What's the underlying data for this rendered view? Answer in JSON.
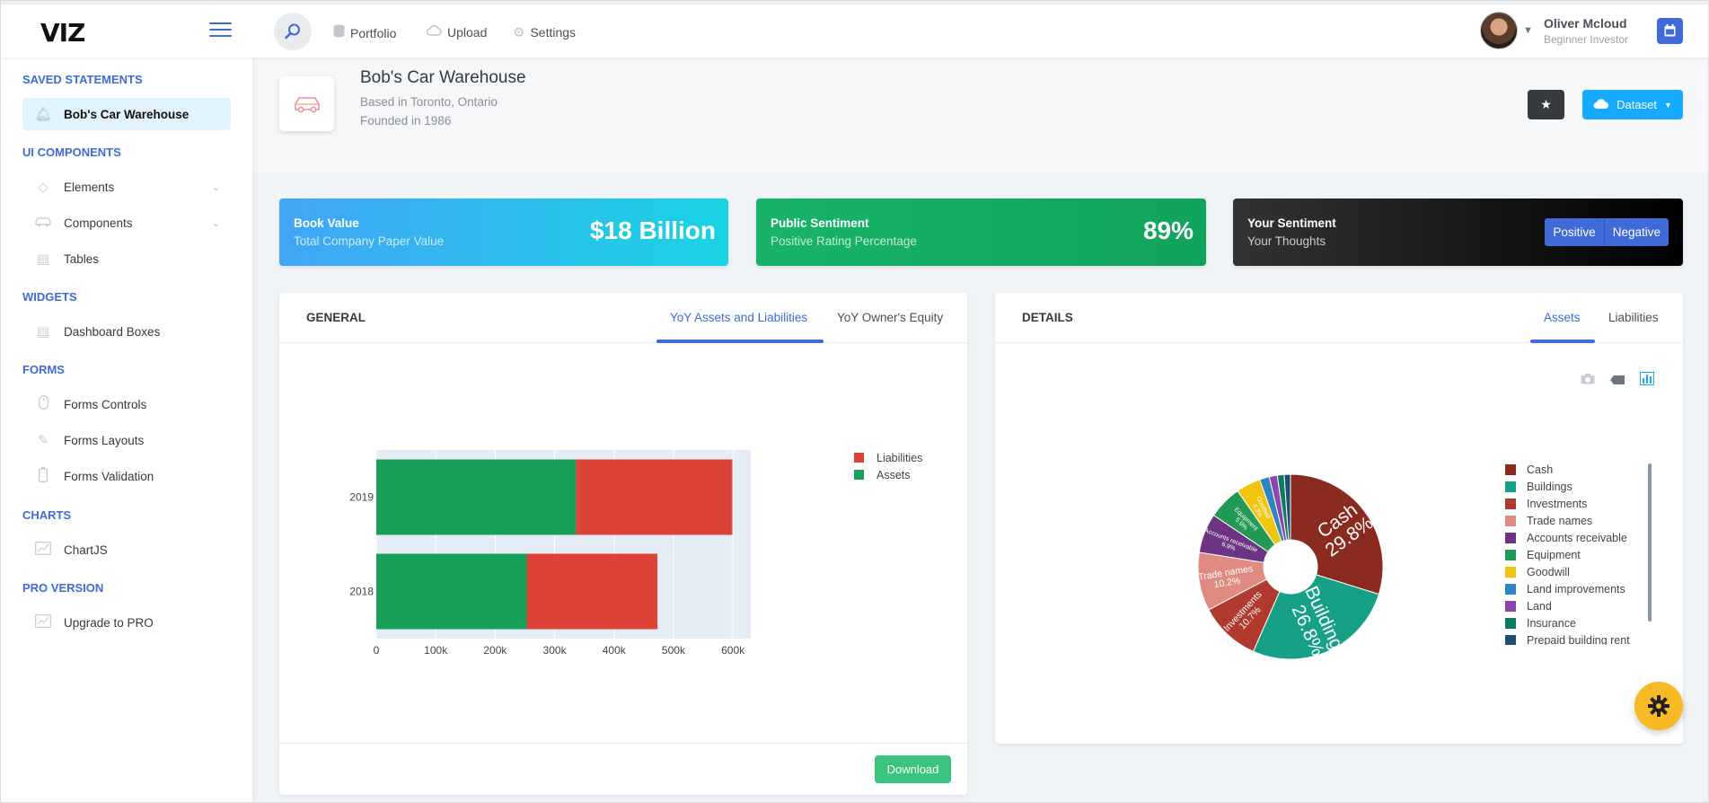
{
  "app": {
    "logo": "VIZ"
  },
  "topnav": [
    {
      "label": "Portfolio",
      "icon": "database-icon"
    },
    {
      "label": "Upload",
      "icon": "cloud-upload-icon"
    },
    {
      "label": "Settings",
      "icon": "gear-icon"
    }
  ],
  "user": {
    "name": "Oliver Mcloud",
    "role": "Beginner Investor"
  },
  "sidebar": {
    "sections": [
      {
        "label": "SAVED STATEMENTS",
        "items": [
          {
            "label": "Bob's Car Warehouse",
            "icon": "bell-icon",
            "active": true
          }
        ]
      },
      {
        "label": "UI COMPONENTS",
        "items": [
          {
            "label": "Elements",
            "icon": "diamond-icon",
            "expandable": true
          },
          {
            "label": "Components",
            "icon": "car-icon",
            "expandable": true
          },
          {
            "label": "Tables",
            "icon": "table-icon"
          }
        ]
      },
      {
        "label": "WIDGETS",
        "items": [
          {
            "label": "Dashboard Boxes",
            "icon": "dashboard-icon"
          }
        ]
      },
      {
        "label": "FORMS",
        "items": [
          {
            "label": "Forms Controls",
            "icon": "mouse-icon"
          },
          {
            "label": "Forms Layouts",
            "icon": "pencil-icon"
          },
          {
            "label": "Forms Validation",
            "icon": "battery-icon"
          }
        ]
      },
      {
        "label": "CHARTS",
        "items": [
          {
            "label": "ChartJS",
            "icon": "graph-icon"
          }
        ]
      },
      {
        "label": "PRO VERSION",
        "items": [
          {
            "label": "Upgrade to PRO",
            "icon": "graph-icon"
          }
        ]
      }
    ]
  },
  "header": {
    "title": "Bob's Car Warehouse",
    "location": "Based in Toronto, Ontario",
    "founded": "Founded in 1986",
    "dataset_label": "Dataset"
  },
  "stats": {
    "book": {
      "title": "Book Value",
      "subtitle": "Total Company Paper Value",
      "value": "$18 Billion"
    },
    "public": {
      "title": "Public Sentiment",
      "subtitle": "Positive Rating Percentage",
      "value": "89%"
    },
    "yours": {
      "title": "Your Sentiment",
      "subtitle": "Your Thoughts",
      "positive": "Positive",
      "negative": "Negative"
    }
  },
  "general": {
    "title": "GENERAL",
    "tabs": [
      "YoY Assets and Liabilities",
      "YoY Owner's Equity"
    ],
    "download": "Download"
  },
  "details": {
    "title": "DETAILS",
    "tabs": [
      "Assets",
      "Liabilities"
    ]
  },
  "colors": {
    "accent": "#3f6ad8",
    "info": "#16aaff",
    "success": "#3ac47d",
    "warning": "#f7b924"
  },
  "chart_data": [
    {
      "type": "bar",
      "orientation": "horizontal",
      "stacked": true,
      "categories": [
        "2018",
        "2019"
      ],
      "series": [
        {
          "name": "Assets",
          "color": "#16a05a",
          "values": [
            253000,
            336000
          ]
        },
        {
          "name": "Liabilities",
          "color": "#db4437",
          "values": [
            220000,
            263000
          ]
        }
      ],
      "x_ticks": [
        "0",
        "100k",
        "200k",
        "300k",
        "400k",
        "500k",
        "600k"
      ],
      "xlim": [
        0,
        630000
      ],
      "legend_position": "top-right"
    },
    {
      "type": "pie",
      "donut": true,
      "labels": [
        "Cash",
        "Buildings",
        "Investments",
        "Trade names",
        "Accounts receivable",
        "Equipment",
        "Goodwill",
        "Land improvements",
        "Land",
        "Insurance",
        "Prepaid building rent"
      ],
      "values": [
        29.8,
        26.8,
        10.7,
        10.2,
        6.9,
        5.9,
        4.3,
        1.7,
        1.4,
        1.2,
        1.1
      ],
      "slice_labels": [
        "Cash\n29.8%",
        "Buildings\n26.8%",
        "Investments\n10.7%",
        "Trade names\n10.2%",
        "Accounts receivable\n6.9%",
        "Equipment\n5.9%",
        "Goodwill\n4.3%",
        "",
        "",
        "",
        ""
      ],
      "colors": [
        "#8b2a1f",
        "#16a085",
        "#b03a2e",
        "#e08b82",
        "#6c3483",
        "#229954",
        "#f1c40f",
        "#2e86c1",
        "#8e44ad",
        "#117a65",
        "#1b4f72"
      ],
      "legend_position": "right"
    }
  ]
}
